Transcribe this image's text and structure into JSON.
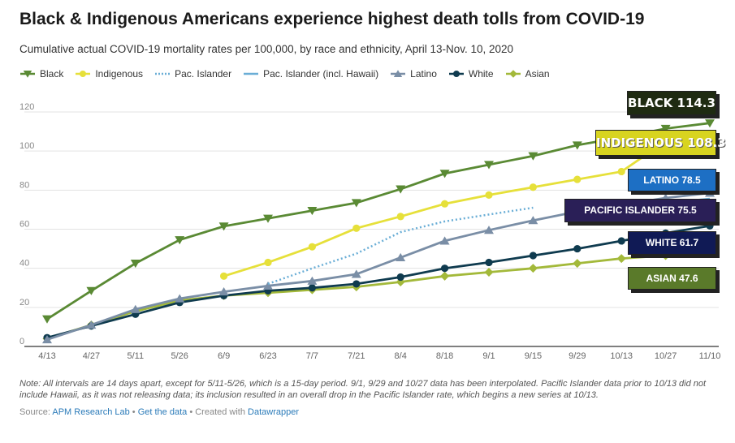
{
  "header": {
    "title": "Black & Indigenous Americans experience highest death tolls from COVID-19",
    "subtitle": "Cumulative actual COVID-19 mortality rates per 100,000, by race and ethnicity, April 13-Nov. 10, 2020"
  },
  "legend": [
    {
      "label": "Black",
      "color": "#5a8a34",
      "style": "solid",
      "marker": "triangle-down"
    },
    {
      "label": "Indigenous",
      "color": "#e6e03a",
      "style": "solid",
      "marker": "circle"
    },
    {
      "label": "Pac. Islander",
      "color": "#6aaed6",
      "style": "dotted",
      "marker": "none"
    },
    {
      "label": "Pac. Islander (incl. Hawaii)",
      "color": "#6aaed6",
      "style": "solid",
      "marker": "none"
    },
    {
      "label": "Latino",
      "color": "#7a8ea6",
      "style": "solid",
      "marker": "triangle-up"
    },
    {
      "label": "White",
      "color": "#0f3b4f",
      "style": "solid",
      "marker": "circle"
    },
    {
      "label": "Asian",
      "color": "#a3b93a",
      "style": "solid",
      "marker": "diamond"
    }
  ],
  "chart_data": {
    "type": "line",
    "x": [
      "4/13",
      "4/27",
      "5/11",
      "5/26",
      "6/9",
      "6/23",
      "7/7",
      "7/21",
      "8/4",
      "8/18",
      "9/1",
      "9/15",
      "9/29",
      "10/13",
      "10/27",
      "11/10"
    ],
    "ylim": [
      0,
      120
    ],
    "yticks": [
      0,
      20,
      40,
      60,
      80,
      100,
      120
    ],
    "grid": true,
    "series": [
      {
        "name": "Black",
        "color": "#5a8a34",
        "marker": "triangle-down",
        "values": [
          14,
          28.5,
          42.5,
          54.5,
          61.5,
          65.5,
          69.5,
          73.5,
          80.5,
          88.5,
          93,
          97.5,
          103,
          107,
          111.5,
          114.3
        ]
      },
      {
        "name": "Indigenous",
        "color": "#e6e03a",
        "marker": "circle",
        "values": [
          null,
          null,
          null,
          null,
          36,
          43,
          51,
          60.5,
          66.5,
          73,
          77.5,
          81.5,
          85.5,
          89.5,
          105,
          108.3
        ]
      },
      {
        "name": "Pac. Islander",
        "color": "#6aaed6",
        "dashed": true,
        "values": [
          null,
          null,
          null,
          null,
          null,
          32,
          40,
          47.5,
          58.5,
          64,
          67.5,
          71,
          null,
          null,
          null,
          null
        ]
      },
      {
        "name": "Pac. Islander (incl. Hawaii)",
        "color": "#6aaed6",
        "values": [
          null,
          null,
          null,
          null,
          null,
          null,
          null,
          null,
          null,
          null,
          null,
          null,
          null,
          71.5,
          73.5,
          75.5
        ]
      },
      {
        "name": "Latino",
        "color": "#7a8ea6",
        "marker": "triangle-up",
        "values": [
          3.5,
          11,
          19,
          24.5,
          28,
          31,
          33.5,
          37,
          45.5,
          54,
          59.5,
          64.5,
          69,
          72.5,
          76,
          78.5
        ]
      },
      {
        "name": "White",
        "color": "#0f3b4f",
        "marker": "circle",
        "values": [
          4.5,
          10.5,
          16.5,
          22.5,
          26,
          28.5,
          30,
          32,
          35.5,
          40,
          43,
          46.5,
          50,
          54,
          58,
          61.7
        ]
      },
      {
        "name": "Asian",
        "color": "#a3b93a",
        "marker": "diamond",
        "values": [
          4,
          11,
          18,
          23.5,
          26,
          27.5,
          29,
          30.5,
          33,
          36,
          38,
          40,
          42.5,
          45,
          46.5,
          47.6
        ]
      }
    ],
    "callouts": [
      {
        "label": "BLACK  114.3",
        "bg": "#1f2b12",
        "color": "#ffffff"
      },
      {
        "label": "INDIGENOUS 108.3",
        "bg": "#d8d420",
        "color": "#ffffff"
      },
      {
        "label": "LATINO  78.5",
        "bg": "#1d6fc4",
        "color": "#ffffff"
      },
      {
        "label": "PACIFIC ISLANDER  75.5",
        "bg": "#2a1f57",
        "color": "#ffffff"
      },
      {
        "label": "WHITE  61.7",
        "bg": "#101a55",
        "color": "#ffffff"
      },
      {
        "label": "ASIAN  47.6",
        "bg": "#5a7a2a",
        "color": "#ffffff"
      }
    ]
  },
  "footer": {
    "note": "Note: All intervals are 14 days apart, except for 5/11-5/26, which is a 15-day period. 9/1, 9/29 and 10/27 data has been interpolated. Pacific Islander data prior to 10/13 did not include Hawaii, as it was not releasing data; its inclusion resulted in an overall drop in the Pacific Islander rate, which begins a new series at 10/13.",
    "source_prefix": "Source: ",
    "source_link": "APM Research Lab",
    "sep1": " • ",
    "data_link": "Get the data",
    "sep2": " • Created with ",
    "tool_link": "Datawrapper"
  }
}
